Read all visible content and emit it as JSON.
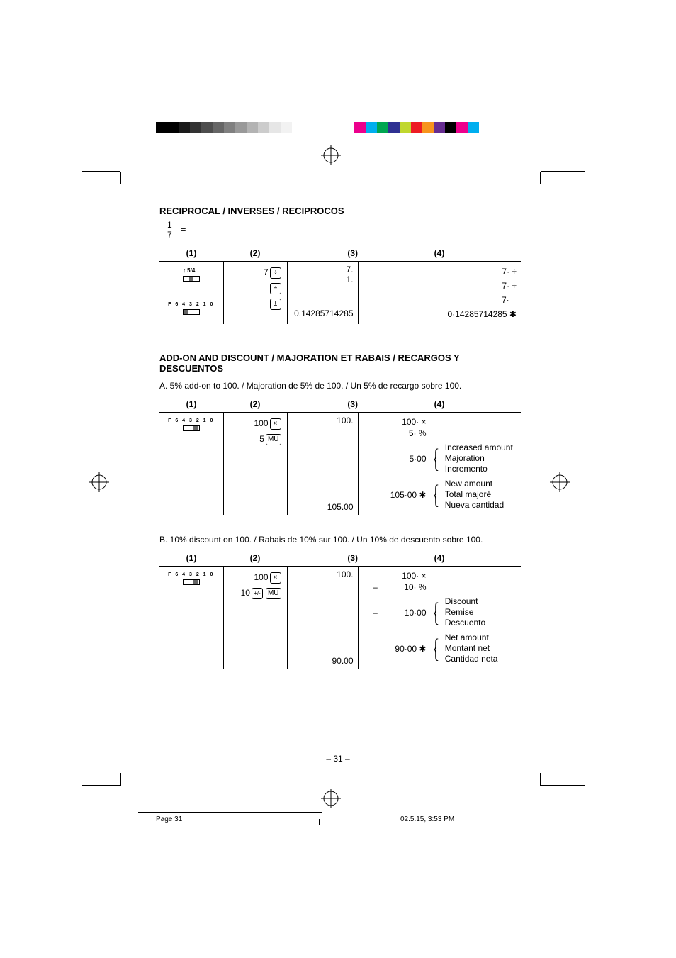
{
  "colorbars": {
    "grays": [
      "#000000",
      "#000000",
      "#1a1a1a",
      "#333333",
      "#4d4d4d",
      "#666666",
      "#808080",
      "#999999",
      "#b3b3b3",
      "#cccccc",
      "#e6e6e6",
      "#f2f2f2",
      "#ffffff"
    ],
    "colors": [
      "#ec008c",
      "#00aeef",
      "#00a651",
      "#2e3192",
      "#c0d72f",
      "#ed1c24",
      "#f7941d",
      "#662d91",
      "#000000",
      "#ec008c",
      "#00aeef"
    ]
  },
  "sec1": {
    "title": "RECIPROCAL / INVERSES / RECIPROCOS",
    "frac_num": "1",
    "frac_den": "7",
    "eq": "=",
    "headers": [
      "(1)",
      "(2)",
      "(3)",
      "(4)"
    ],
    "col1": {
      "sw1_label": "↑ 5/4 ↓",
      "sw2_label": "F 6 4 3 2 1 0"
    },
    "col2": {
      "r1_n": "7",
      "r1_k": "÷",
      "r2_k": "÷",
      "r3_k": "±"
    },
    "col3": {
      "r1": "7.",
      "r2": "1.",
      "r3": "",
      "r4": "0.14285714285"
    },
    "col4": {
      "r1": "7· ÷",
      "r2": "7· ÷",
      "r3": "7· =",
      "r4": "0·14285714285 ✱"
    }
  },
  "sec2": {
    "title": "ADD-ON AND DISCOUNT / MAJORATION ET RABAIS / RECARGOS Y DESCUENTOS",
    "subA": "A.  5% add-on to 100. / Majoration de 5% de 100. / Un 5% de recargo sobre 100.",
    "headers": [
      "(1)",
      "(2)",
      "(3)",
      "(4)"
    ],
    "A": {
      "col1_sw": "F 6 4 3 2 1 0",
      "col2_r1_n": "100",
      "col2_r1_k": "×",
      "col2_r2_n": "5",
      "col2_r2_k": "MU",
      "col3_r1": "100.",
      "col3_r2": "105.00",
      "col4_l1": "100· ×",
      "col4_l2": "5· %",
      "col4_b1_v": "5·00",
      "col4_b1_labels": [
        "Increased amount",
        "Majoration",
        "Incremento"
      ],
      "col4_b2_v": "105·00 ✱",
      "col4_b2_labels": [
        "New amount",
        "Total majoré",
        "Nueva cantidad"
      ]
    },
    "subB": "B.  10% discount on 100. / Rabais de 10% sur 100. / Un 10% de descuento sobre 100.",
    "B": {
      "col1_sw": "F 6 4 3 2 1 0",
      "col2_r1_n": "100",
      "col2_r1_k": "×",
      "col2_r2_n": "10",
      "col2_r2_ka": "+/-",
      "col2_r2_kb": "MU",
      "col3_r1": "100.",
      "col3_r2": "90.00",
      "col4_l1_s": "",
      "col4_l1": "100· ×",
      "col4_l2_s": "–",
      "col4_l2": "10· %",
      "col4_b1_s": "–",
      "col4_b1_v": "10·00",
      "col4_b1_labels": [
        "Discount",
        "Remise",
        "Descuento"
      ],
      "col4_b2_v": "90·00 ✱",
      "col4_b2_labels": [
        "Net amount",
        "Montant net",
        "Cantidad neta"
      ]
    }
  },
  "page_num": "– 31 –",
  "footer_left": "Page 31",
  "footer_right": "02.5.15, 3:53 PM"
}
